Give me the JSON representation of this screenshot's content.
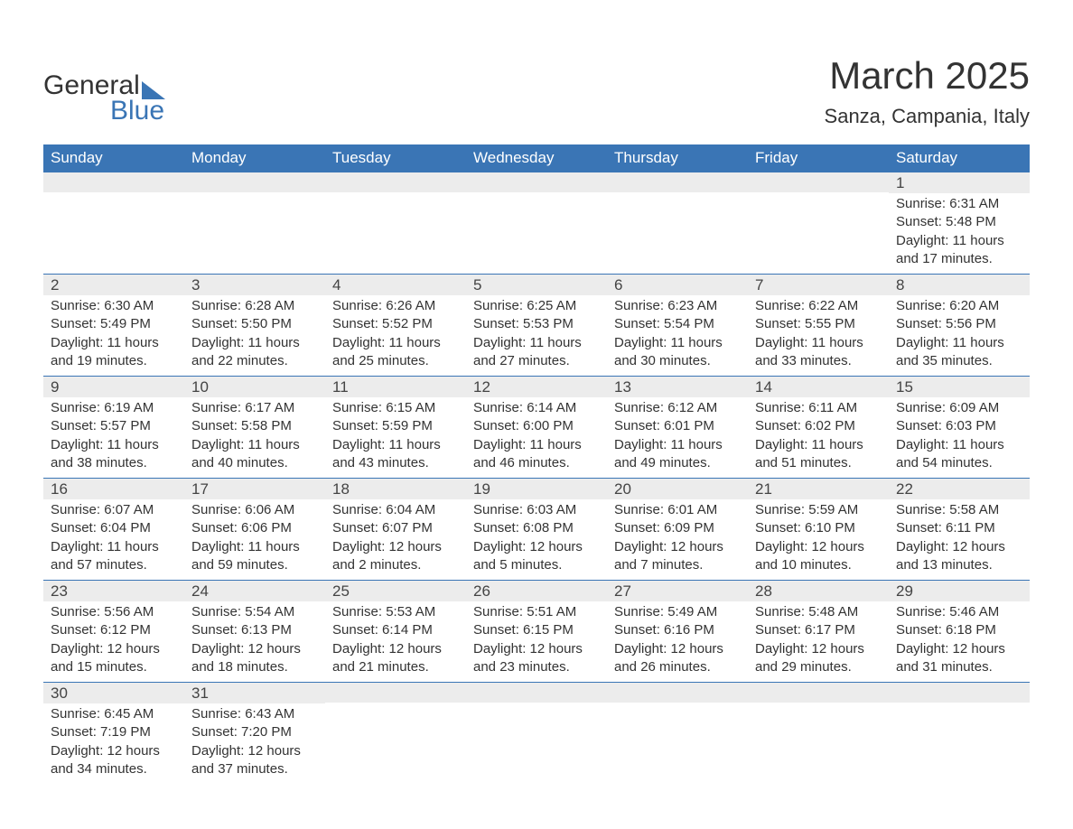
{
  "logo": {
    "word1": "General",
    "word2": "Blue",
    "accent_color": "#3a75b5"
  },
  "title": "March 2025",
  "location": "Sanza, Campania, Italy",
  "colors": {
    "header_bg": "#3a75b5",
    "header_text": "#ffffff",
    "row_divider": "#3a75b5",
    "daynum_bg": "#ececec",
    "body_text": "#333333",
    "page_bg": "#ffffff"
  },
  "fonts": {
    "title_size_pt": 32,
    "location_size_pt": 17,
    "header_size_pt": 13,
    "daynum_size_pt": 13,
    "body_size_pt": 11
  },
  "day_headers": [
    "Sunday",
    "Monday",
    "Tuesday",
    "Wednesday",
    "Thursday",
    "Friday",
    "Saturday"
  ],
  "weeks": [
    [
      {
        "date": "",
        "lines": []
      },
      {
        "date": "",
        "lines": []
      },
      {
        "date": "",
        "lines": []
      },
      {
        "date": "",
        "lines": []
      },
      {
        "date": "",
        "lines": []
      },
      {
        "date": "",
        "lines": []
      },
      {
        "date": "1",
        "lines": [
          "Sunrise: 6:31 AM",
          "Sunset: 5:48 PM",
          "Daylight: 11 hours and 17 minutes."
        ]
      }
    ],
    [
      {
        "date": "2",
        "lines": [
          "Sunrise: 6:30 AM",
          "Sunset: 5:49 PM",
          "Daylight: 11 hours and 19 minutes."
        ]
      },
      {
        "date": "3",
        "lines": [
          "Sunrise: 6:28 AM",
          "Sunset: 5:50 PM",
          "Daylight: 11 hours and 22 minutes."
        ]
      },
      {
        "date": "4",
        "lines": [
          "Sunrise: 6:26 AM",
          "Sunset: 5:52 PM",
          "Daylight: 11 hours and 25 minutes."
        ]
      },
      {
        "date": "5",
        "lines": [
          "Sunrise: 6:25 AM",
          "Sunset: 5:53 PM",
          "Daylight: 11 hours and 27 minutes."
        ]
      },
      {
        "date": "6",
        "lines": [
          "Sunrise: 6:23 AM",
          "Sunset: 5:54 PM",
          "Daylight: 11 hours and 30 minutes."
        ]
      },
      {
        "date": "7",
        "lines": [
          "Sunrise: 6:22 AM",
          "Sunset: 5:55 PM",
          "Daylight: 11 hours and 33 minutes."
        ]
      },
      {
        "date": "8",
        "lines": [
          "Sunrise: 6:20 AM",
          "Sunset: 5:56 PM",
          "Daylight: 11 hours and 35 minutes."
        ]
      }
    ],
    [
      {
        "date": "9",
        "lines": [
          "Sunrise: 6:19 AM",
          "Sunset: 5:57 PM",
          "Daylight: 11 hours and 38 minutes."
        ]
      },
      {
        "date": "10",
        "lines": [
          "Sunrise: 6:17 AM",
          "Sunset: 5:58 PM",
          "Daylight: 11 hours and 40 minutes."
        ]
      },
      {
        "date": "11",
        "lines": [
          "Sunrise: 6:15 AM",
          "Sunset: 5:59 PM",
          "Daylight: 11 hours and 43 minutes."
        ]
      },
      {
        "date": "12",
        "lines": [
          "Sunrise: 6:14 AM",
          "Sunset: 6:00 PM",
          "Daylight: 11 hours and 46 minutes."
        ]
      },
      {
        "date": "13",
        "lines": [
          "Sunrise: 6:12 AM",
          "Sunset: 6:01 PM",
          "Daylight: 11 hours and 49 minutes."
        ]
      },
      {
        "date": "14",
        "lines": [
          "Sunrise: 6:11 AM",
          "Sunset: 6:02 PM",
          "Daylight: 11 hours and 51 minutes."
        ]
      },
      {
        "date": "15",
        "lines": [
          "Sunrise: 6:09 AM",
          "Sunset: 6:03 PM",
          "Daylight: 11 hours and 54 minutes."
        ]
      }
    ],
    [
      {
        "date": "16",
        "lines": [
          "Sunrise: 6:07 AM",
          "Sunset: 6:04 PM",
          "Daylight: 11 hours and 57 minutes."
        ]
      },
      {
        "date": "17",
        "lines": [
          "Sunrise: 6:06 AM",
          "Sunset: 6:06 PM",
          "Daylight: 11 hours and 59 minutes."
        ]
      },
      {
        "date": "18",
        "lines": [
          "Sunrise: 6:04 AM",
          "Sunset: 6:07 PM",
          "Daylight: 12 hours and 2 minutes."
        ]
      },
      {
        "date": "19",
        "lines": [
          "Sunrise: 6:03 AM",
          "Sunset: 6:08 PM",
          "Daylight: 12 hours and 5 minutes."
        ]
      },
      {
        "date": "20",
        "lines": [
          "Sunrise: 6:01 AM",
          "Sunset: 6:09 PM",
          "Daylight: 12 hours and 7 minutes."
        ]
      },
      {
        "date": "21",
        "lines": [
          "Sunrise: 5:59 AM",
          "Sunset: 6:10 PM",
          "Daylight: 12 hours and 10 minutes."
        ]
      },
      {
        "date": "22",
        "lines": [
          "Sunrise: 5:58 AM",
          "Sunset: 6:11 PM",
          "Daylight: 12 hours and 13 minutes."
        ]
      }
    ],
    [
      {
        "date": "23",
        "lines": [
          "Sunrise: 5:56 AM",
          "Sunset: 6:12 PM",
          "Daylight: 12 hours and 15 minutes."
        ]
      },
      {
        "date": "24",
        "lines": [
          "Sunrise: 5:54 AM",
          "Sunset: 6:13 PM",
          "Daylight: 12 hours and 18 minutes."
        ]
      },
      {
        "date": "25",
        "lines": [
          "Sunrise: 5:53 AM",
          "Sunset: 6:14 PM",
          "Daylight: 12 hours and 21 minutes."
        ]
      },
      {
        "date": "26",
        "lines": [
          "Sunrise: 5:51 AM",
          "Sunset: 6:15 PM",
          "Daylight: 12 hours and 23 minutes."
        ]
      },
      {
        "date": "27",
        "lines": [
          "Sunrise: 5:49 AM",
          "Sunset: 6:16 PM",
          "Daylight: 12 hours and 26 minutes."
        ]
      },
      {
        "date": "28",
        "lines": [
          "Sunrise: 5:48 AM",
          "Sunset: 6:17 PM",
          "Daylight: 12 hours and 29 minutes."
        ]
      },
      {
        "date": "29",
        "lines": [
          "Sunrise: 5:46 AM",
          "Sunset: 6:18 PM",
          "Daylight: 12 hours and 31 minutes."
        ]
      }
    ],
    [
      {
        "date": "30",
        "lines": [
          "Sunrise: 6:45 AM",
          "Sunset: 7:19 PM",
          "Daylight: 12 hours and 34 minutes."
        ]
      },
      {
        "date": "31",
        "lines": [
          "Sunrise: 6:43 AM",
          "Sunset: 7:20 PM",
          "Daylight: 12 hours and 37 minutes."
        ]
      },
      {
        "date": "",
        "lines": []
      },
      {
        "date": "",
        "lines": []
      },
      {
        "date": "",
        "lines": []
      },
      {
        "date": "",
        "lines": []
      },
      {
        "date": "",
        "lines": []
      }
    ]
  ]
}
